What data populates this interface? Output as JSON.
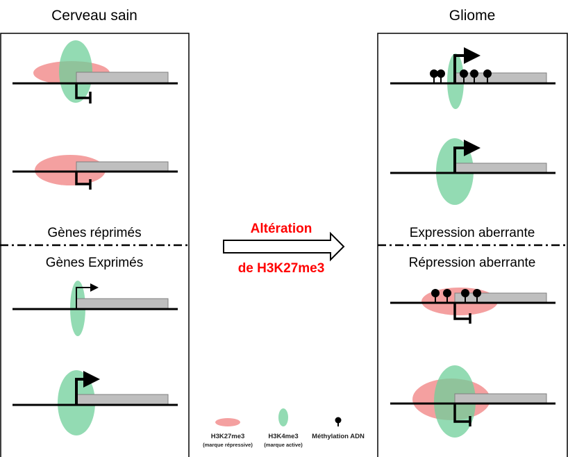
{
  "titles": {
    "left": "Cerveau sain",
    "right": "Gliome"
  },
  "sections": {
    "left_top": "Gènes réprimés",
    "left_bottom": "Gènes Exprimés",
    "right_top": "Expression aberrante",
    "right_bottom": "Répression aberrante"
  },
  "arrow": {
    "line1": "Altération",
    "line2": "de H3K27me3"
  },
  "legend": [
    {
      "label": "H3K27me3",
      "sub": "(marque répressive)"
    },
    {
      "label": "H3K4me3",
      "sub": "(marque active)"
    },
    {
      "label": "Méthylation ADN",
      "sub": ""
    }
  ],
  "colors": {
    "h3k27me3": "#f08080",
    "h3k4me3": "#6fcf9a",
    "emphasis": "#ff0000"
  }
}
